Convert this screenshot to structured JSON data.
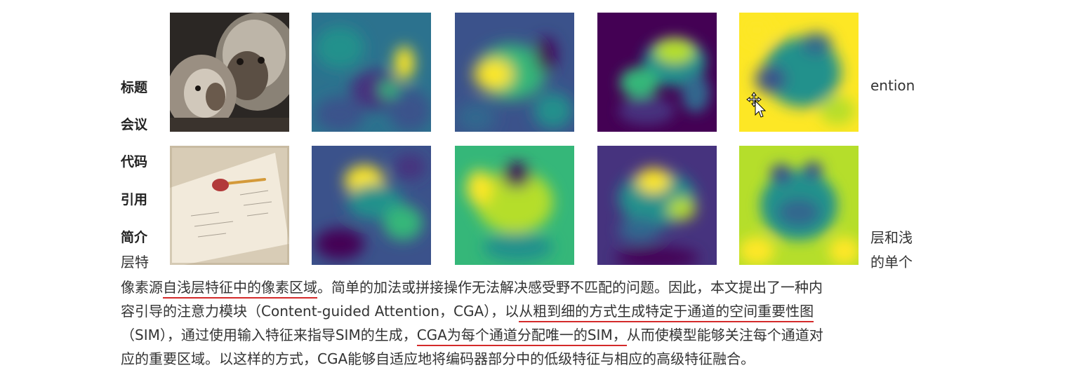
{
  "labels": {
    "title": "标题",
    "venue": "会议",
    "code": "代码",
    "cite": "引用",
    "abstract": "简介"
  },
  "side_text": {
    "title_tail": "ention",
    "abstract_tail": "层和浅",
    "line2_start": "层特",
    "line2_tail": "的单个"
  },
  "paragraph": {
    "l1_a": "像素源",
    "l1_u1": "自浅层特征中的像素区域",
    "l1_b": "。简单的加法或拼接操作无法解决感受野不匹配的问题。因此，本文提出了一种内",
    "l2_a": "容引导的注意力模块（Content-guided Attention，CGA），以",
    "l2_u1": "从粗到细的方式生成特定于通道的空间重要性图",
    "l3_a": "（SIM），通过使用输入特征来指导SIM的生成，",
    "l3_u1": "CGA为每个通道分配唯一的SIM，",
    "l3_b": "从而使模型能够关注每个通道对",
    "l4": "应的重要区域。以这样的方式，CGA能够自适应地将编码器部分中的低级特征与相应的高级特征融合。"
  },
  "figure": {
    "rows": 2,
    "columns": 5,
    "colormap": "viridis",
    "row1_input": "photo-two-monkeys",
    "row2_input": "photo-paper-with-pencil"
  },
  "colors": {
    "underline": "#d42a2a",
    "viridis_low": "#440154",
    "viridis_mid": "#21918c",
    "viridis_high": "#fde725"
  },
  "cursor": "move-cursor-icon"
}
